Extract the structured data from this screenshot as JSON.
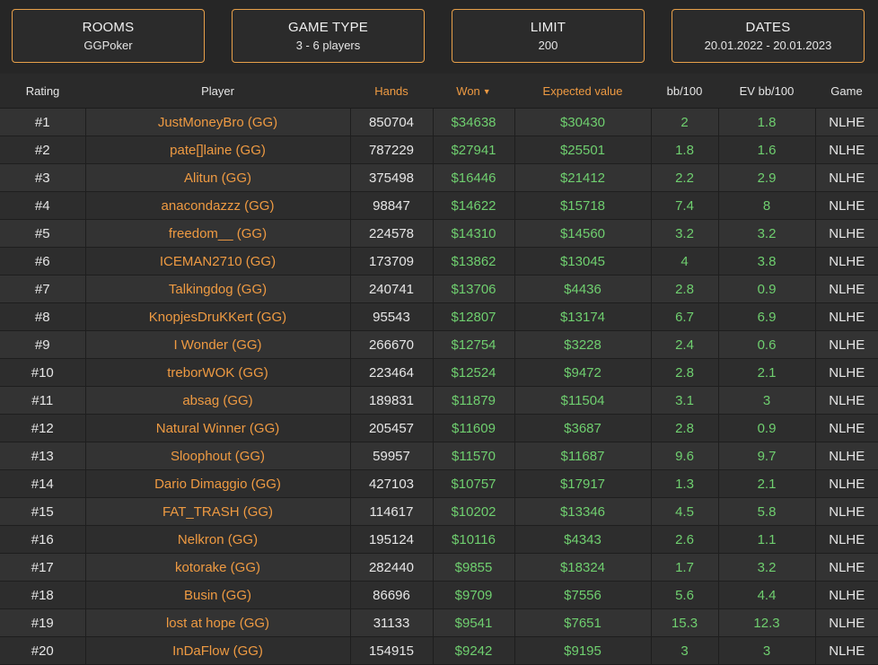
{
  "filters": {
    "rooms": {
      "title": "ROOMS",
      "value": "GGPoker"
    },
    "game_type": {
      "title": "GAME TYPE",
      "value": "3 - 6 players"
    },
    "limit": {
      "title": "LIMIT",
      "value": "200"
    },
    "dates": {
      "title": "DATES",
      "value": "20.01.2022 - 20.01.2023"
    }
  },
  "table": {
    "headers": {
      "rating": "Rating",
      "player": "Player",
      "hands": "Hands",
      "won": "Won",
      "ev": "Expected value",
      "bb100": "bb/100",
      "evbb100": "EV bb/100",
      "game": "Game"
    },
    "sort_icon": "caret-down-icon",
    "colors": {
      "accent": "#ee9a42",
      "positive": "#6fcf6f",
      "background": "#262626"
    },
    "rows": [
      {
        "rank": "#1",
        "player": "JustMoneyBro (GG)",
        "hands": "850704",
        "won": "$34638",
        "ev": "$30430",
        "bb": "2",
        "evbb": "1.8",
        "game": "NLHE"
      },
      {
        "rank": "#2",
        "player": "pate[]laine (GG)",
        "hands": "787229",
        "won": "$27941",
        "ev": "$25501",
        "bb": "1.8",
        "evbb": "1.6",
        "game": "NLHE"
      },
      {
        "rank": "#3",
        "player": "Alitun (GG)",
        "hands": "375498",
        "won": "$16446",
        "ev": "$21412",
        "bb": "2.2",
        "evbb": "2.9",
        "game": "NLHE"
      },
      {
        "rank": "#4",
        "player": "anacondazzz (GG)",
        "hands": "98847",
        "won": "$14622",
        "ev": "$15718",
        "bb": "7.4",
        "evbb": "8",
        "game": "NLHE"
      },
      {
        "rank": "#5",
        "player": "freedom__ (GG)",
        "hands": "224578",
        "won": "$14310",
        "ev": "$14560",
        "bb": "3.2",
        "evbb": "3.2",
        "game": "NLHE"
      },
      {
        "rank": "#6",
        "player": "ICEMAN2710 (GG)",
        "hands": "173709",
        "won": "$13862",
        "ev": "$13045",
        "bb": "4",
        "evbb": "3.8",
        "game": "NLHE"
      },
      {
        "rank": "#7",
        "player": "Talkingdog (GG)",
        "hands": "240741",
        "won": "$13706",
        "ev": "$4436",
        "bb": "2.8",
        "evbb": "0.9",
        "game": "NLHE"
      },
      {
        "rank": "#8",
        "player": "KnopjesDruKKert (GG)",
        "hands": "95543",
        "won": "$12807",
        "ev": "$13174",
        "bb": "6.7",
        "evbb": "6.9",
        "game": "NLHE"
      },
      {
        "rank": "#9",
        "player": "I Wonder (GG)",
        "hands": "266670",
        "won": "$12754",
        "ev": "$3228",
        "bb": "2.4",
        "evbb": "0.6",
        "game": "NLHE"
      },
      {
        "rank": "#10",
        "player": "treborWOK (GG)",
        "hands": "223464",
        "won": "$12524",
        "ev": "$9472",
        "bb": "2.8",
        "evbb": "2.1",
        "game": "NLHE"
      },
      {
        "rank": "#11",
        "player": "absag (GG)",
        "hands": "189831",
        "won": "$11879",
        "ev": "$11504",
        "bb": "3.1",
        "evbb": "3",
        "game": "NLHE"
      },
      {
        "rank": "#12",
        "player": "Natural Winner (GG)",
        "hands": "205457",
        "won": "$11609",
        "ev": "$3687",
        "bb": "2.8",
        "evbb": "0.9",
        "game": "NLHE"
      },
      {
        "rank": "#13",
        "player": "Sloophout (GG)",
        "hands": "59957",
        "won": "$11570",
        "ev": "$11687",
        "bb": "9.6",
        "evbb": "9.7",
        "game": "NLHE"
      },
      {
        "rank": "#14",
        "player": "Dario Dimaggio (GG)",
        "hands": "427103",
        "won": "$10757",
        "ev": "$17917",
        "bb": "1.3",
        "evbb": "2.1",
        "game": "NLHE"
      },
      {
        "rank": "#15",
        "player": "FAT_TRASH (GG)",
        "hands": "114617",
        "won": "$10202",
        "ev": "$13346",
        "bb": "4.5",
        "evbb": "5.8",
        "game": "NLHE"
      },
      {
        "rank": "#16",
        "player": "Nelkron (GG)",
        "hands": "195124",
        "won": "$10116",
        "ev": "$4343",
        "bb": "2.6",
        "evbb": "1.1",
        "game": "NLHE"
      },
      {
        "rank": "#17",
        "player": "kotorake (GG)",
        "hands": "282440",
        "won": "$9855",
        "ev": "$18324",
        "bb": "1.7",
        "evbb": "3.2",
        "game": "NLHE"
      },
      {
        "rank": "#18",
        "player": "Busin (GG)",
        "hands": "86696",
        "won": "$9709",
        "ev": "$7556",
        "bb": "5.6",
        "evbb": "4.4",
        "game": "NLHE"
      },
      {
        "rank": "#19",
        "player": "lost at hope (GG)",
        "hands": "31133",
        "won": "$9541",
        "ev": "$7651",
        "bb": "15.3",
        "evbb": "12.3",
        "game": "NLHE"
      },
      {
        "rank": "#20",
        "player": "InDaFlow (GG)",
        "hands": "154915",
        "won": "$9242",
        "ev": "$9195",
        "bb": "3",
        "evbb": "3",
        "game": "NLHE"
      }
    ]
  }
}
